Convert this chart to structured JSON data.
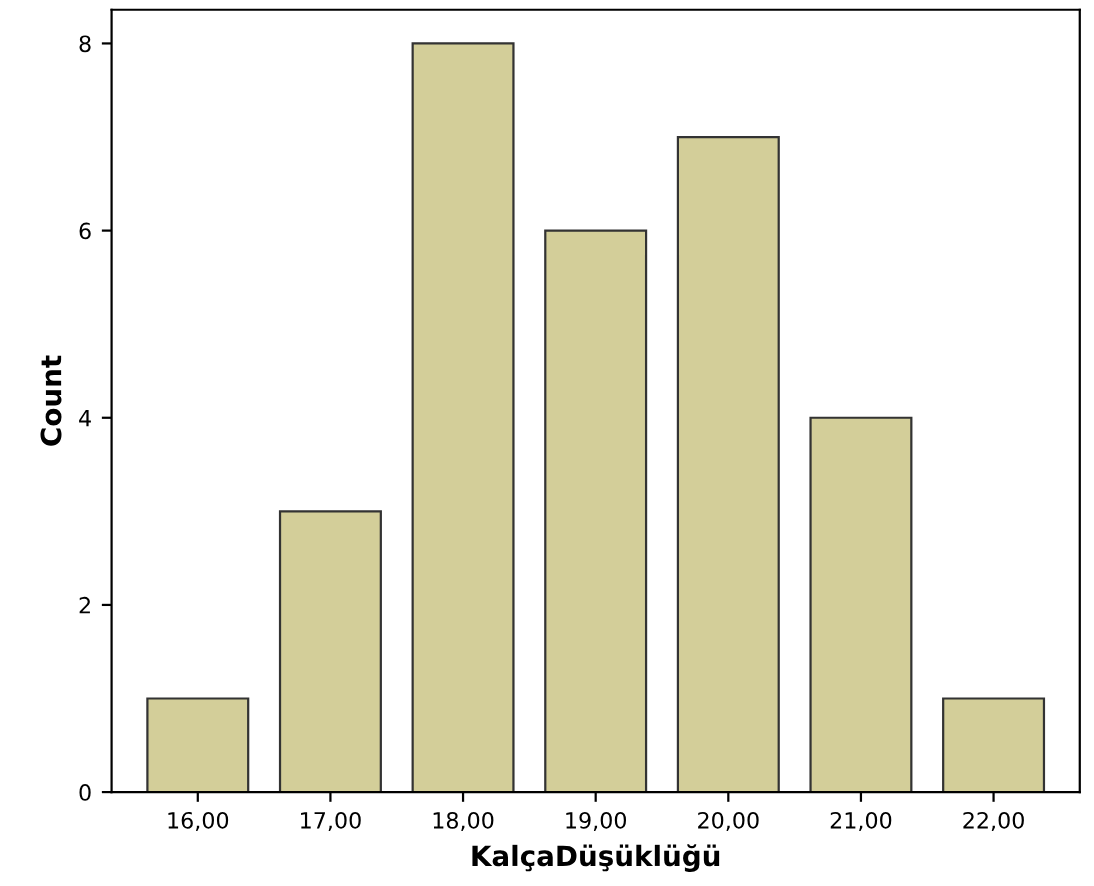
{
  "chart_data": {
    "type": "bar",
    "xlabel": "KalçaDüşüklüğü",
    "ylabel": "Count",
    "categories": [
      "16,00",
      "17,00",
      "18,00",
      "19,00",
      "20,00",
      "21,00",
      "22,00"
    ],
    "values": [
      1,
      3,
      8,
      6,
      7,
      4,
      1
    ],
    "color": "#d3ce99",
    "ylim": [
      0,
      8.36
    ],
    "yticks": [
      0,
      2,
      4,
      6,
      8
    ],
    "grid": false,
    "legend": false
  }
}
